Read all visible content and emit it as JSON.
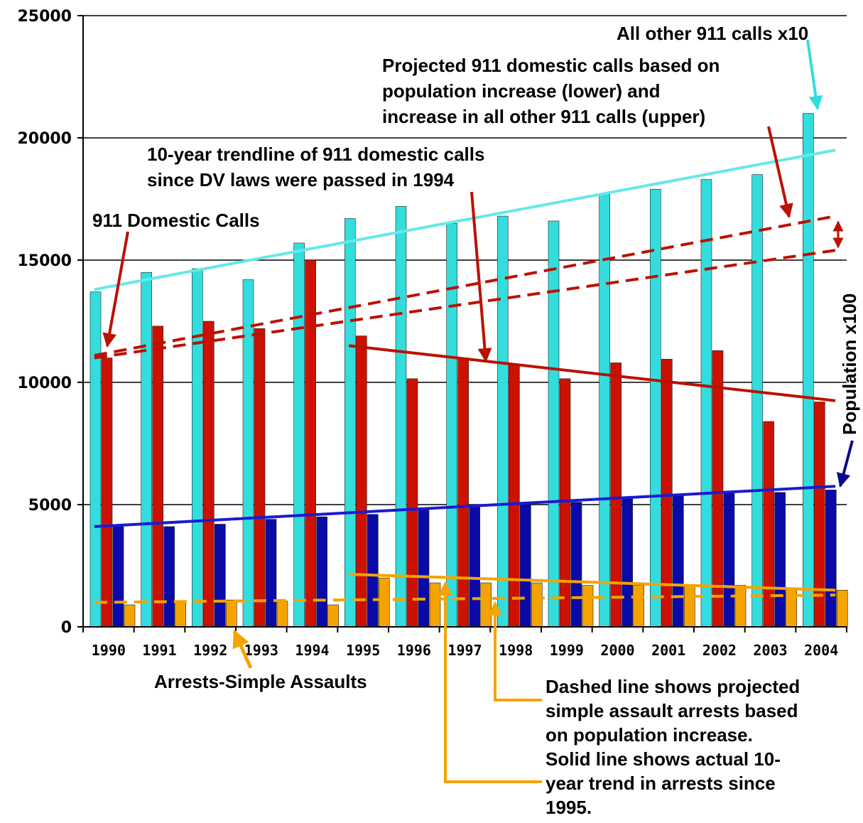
{
  "chart_data": {
    "type": "bar",
    "categories": [
      "1990",
      "1991",
      "1992",
      "1993",
      "1994",
      "1995",
      "1996",
      "1997",
      "1998",
      "1999",
      "2000",
      "2001",
      "2002",
      "2003",
      "2004"
    ],
    "ylim": [
      0,
      25000
    ],
    "yticks": [
      0,
      5000,
      10000,
      15000,
      20000,
      25000
    ],
    "grid": true,
    "series": [
      {
        "name": "All other 911 calls x10",
        "color": "#33dddd",
        "values": [
          13700,
          14500,
          14650,
          14200,
          15700,
          16700,
          17200,
          16500,
          16800,
          16600,
          17700,
          17900,
          18300,
          18500,
          21000
        ]
      },
      {
        "name": "911 Domestic Calls",
        "color": "#cc1100",
        "values": [
          11000,
          12300,
          12500,
          12200,
          15000,
          11900,
          10150,
          11000,
          10700,
          10150,
          10800,
          10950,
          11300,
          8400,
          9200
        ]
      },
      {
        "name": "Population x100",
        "color": "#0a0aa8",
        "values": [
          4100,
          4100,
          4200,
          4400,
          4500,
          4600,
          4800,
          4900,
          5000,
          5100,
          5300,
          5400,
          5500,
          5500,
          5600
        ]
      },
      {
        "name": "Arrests-Simple Assaults",
        "color": "#f5a300",
        "values": [
          900,
          1050,
          1100,
          1050,
          900,
          2000,
          1800,
          1800,
          1800,
          1700,
          1700,
          1700,
          1700,
          1600,
          1500
        ]
      }
    ],
    "trendlines": [
      {
        "series": "All other 911 calls x10",
        "style": "solid",
        "color": "#66e8e8",
        "from": [
          "1990",
          13800
        ],
        "to": [
          "2004",
          19500
        ]
      },
      {
        "series": "Population x100",
        "style": "solid",
        "color": "#1a1ad0",
        "from": [
          "1990",
          4100
        ],
        "to": [
          "2004",
          5750
        ]
      },
      {
        "series": "911 Domestic Calls",
        "style": "solid",
        "color": "#bb1100",
        "from": [
          "1995",
          11500
        ],
        "to": [
          "2004",
          9250
        ]
      },
      {
        "series": "911 Domestic Calls projected (lower)",
        "style": "dashed",
        "color": "#bb1100",
        "from": [
          "1990",
          11000
        ],
        "to": [
          "2004",
          15400
        ]
      },
      {
        "series": "911 Domestic Calls projected (upper)",
        "style": "dashed",
        "color": "#bb1100",
        "from": [
          "1990",
          11100
        ],
        "to": [
          "2004",
          16800
        ]
      },
      {
        "series": "Arrests-Simple Assaults",
        "style": "solid",
        "color": "#f5a300",
        "from": [
          "1995",
          2150
        ],
        "to": [
          "2004",
          1500
        ]
      },
      {
        "series": "Arrests-Simple Assaults projected",
        "style": "dashed",
        "color": "#f5a300",
        "from": [
          "1990",
          1000
        ],
        "to": [
          "2004",
          1300
        ]
      }
    ],
    "annotations": {
      "all_other": "All other 911 calls x10",
      "projected": [
        "Projected 911 domestic calls based on",
        "population increase (lower) and",
        "increase in all other 911 calls (upper)"
      ],
      "trend": [
        "10-year trendline of 911 domestic calls",
        "since DV laws were passed in 1994"
      ],
      "domestic": "911 Domestic Calls",
      "population": "Population x100",
      "arrests": "Arrests-Simple Assaults",
      "dashed_note": [
        "Dashed line shows projected",
        "simple assault arrests based",
        "on population increase.",
        "Solid line shows actual 10-",
        "year trend in arrests since",
        "1995."
      ]
    }
  }
}
